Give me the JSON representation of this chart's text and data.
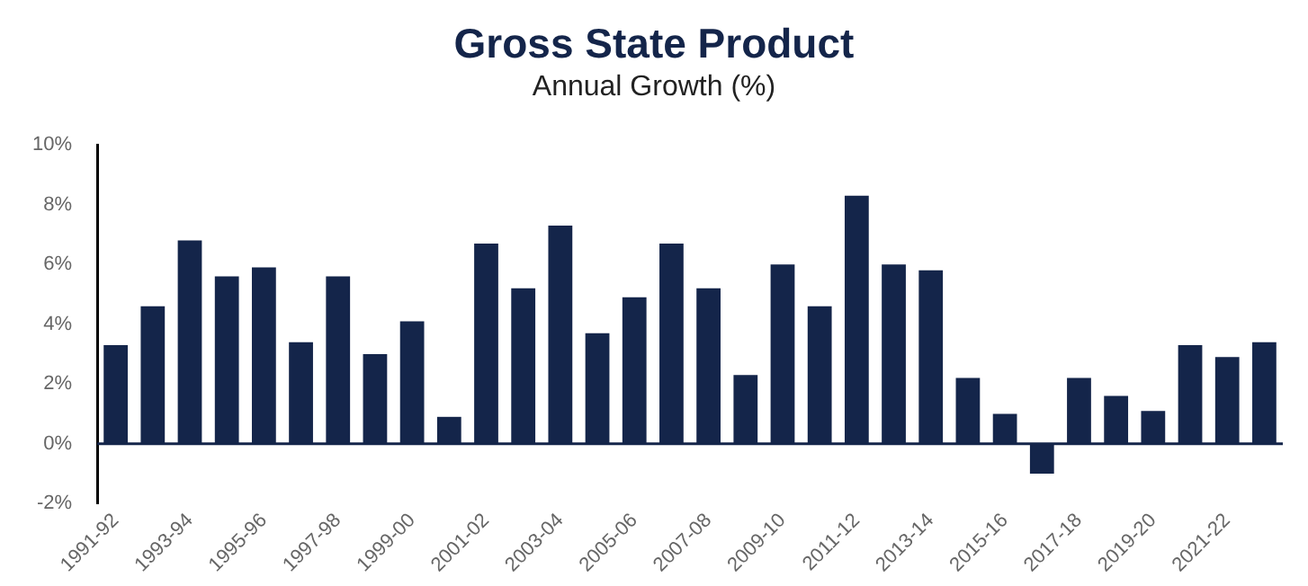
{
  "chart_data": {
    "type": "bar",
    "title": "Gross State Product",
    "subtitle": "Annual Growth (%)",
    "categories": [
      "1991-92",
      null,
      "1993-94",
      null,
      "1995-96",
      null,
      "1997-98",
      null,
      "1999-00",
      null,
      "2001-02",
      null,
      "2003-04",
      null,
      "2005-06",
      null,
      "2007-08",
      null,
      "2009-10",
      null,
      "2011-12",
      null,
      "2013-14",
      null,
      "2015-16",
      null,
      "2017-18",
      null,
      "2019-20",
      null,
      "2021-22",
      null
    ],
    "values": [
      3.3,
      4.6,
      6.8,
      5.6,
      5.9,
      3.4,
      5.6,
      3.0,
      4.1,
      0.9,
      6.7,
      5.2,
      7.3,
      3.7,
      4.9,
      6.7,
      5.2,
      2.3,
      6.0,
      4.6,
      8.3,
      6.0,
      5.8,
      2.2,
      1.0,
      -1.0,
      2.2,
      1.6,
      1.1,
      3.3,
      2.9,
      3.4
    ],
    "color": "#14254a",
    "ylim": [
      -2,
      10
    ],
    "yticks": [
      {
        "value": -2,
        "label": "-2%"
      },
      {
        "value": 0,
        "label": "0%"
      },
      {
        "value": 2,
        "label": "2%"
      },
      {
        "value": 4,
        "label": "4%"
      },
      {
        "value": 6,
        "label": "6%"
      },
      {
        "value": 8,
        "label": "8%"
      },
      {
        "value": 10,
        "label": "10%"
      }
    ],
    "grid": false,
    "legend": false
  }
}
